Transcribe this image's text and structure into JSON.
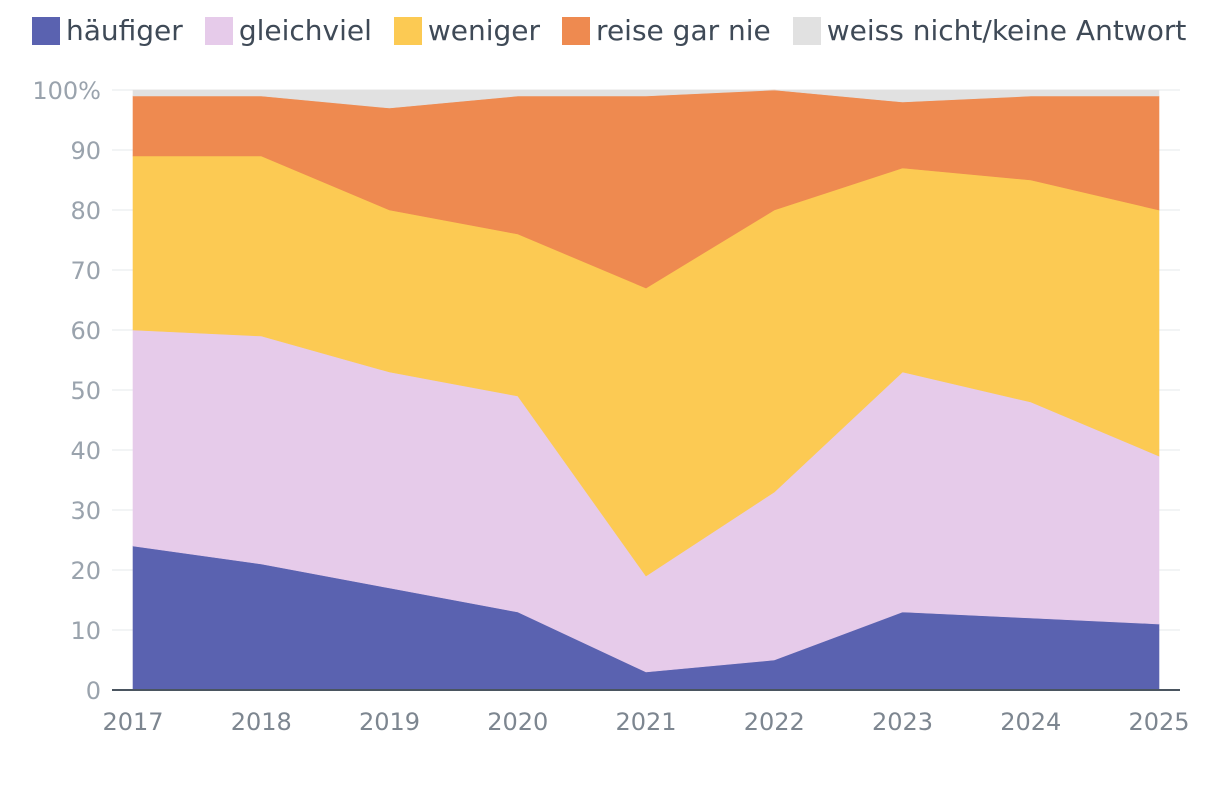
{
  "chart_data": {
    "type": "area",
    "stacked": true,
    "title": "",
    "xlabel": "",
    "ylabel": "",
    "ylim": [
      0,
      100
    ],
    "y_ticks": [
      "0",
      "10",
      "20",
      "30",
      "40",
      "50",
      "60",
      "70",
      "80",
      "90",
      "100%"
    ],
    "categories": [
      "2017",
      "2018",
      "2019",
      "2020",
      "2021",
      "2022",
      "2023",
      "2024",
      "2025"
    ],
    "series": [
      {
        "name": "häufiger",
        "color": "#5a62b0",
        "values": [
          24,
          21,
          17,
          13,
          3,
          5,
          13,
          12,
          11
        ]
      },
      {
        "name": "gleichviel",
        "color": "#e6cbea",
        "values": [
          36,
          38,
          36,
          36,
          16,
          28,
          40,
          36,
          28
        ]
      },
      {
        "name": "weniger",
        "color": "#fcca53",
        "values": [
          29,
          30,
          27,
          27,
          48,
          47,
          34,
          37,
          41
        ]
      },
      {
        "name": "reise gar nie",
        "color": "#ee8a50",
        "values": [
          10,
          10,
          17,
          23,
          32,
          20,
          11,
          14,
          19
        ]
      },
      {
        "name": "weiss nicht/keine Antwort",
        "color": "#e1e1e1",
        "values": [
          1,
          1,
          3,
          1,
          1,
          0,
          2,
          1,
          1
        ]
      }
    ]
  }
}
